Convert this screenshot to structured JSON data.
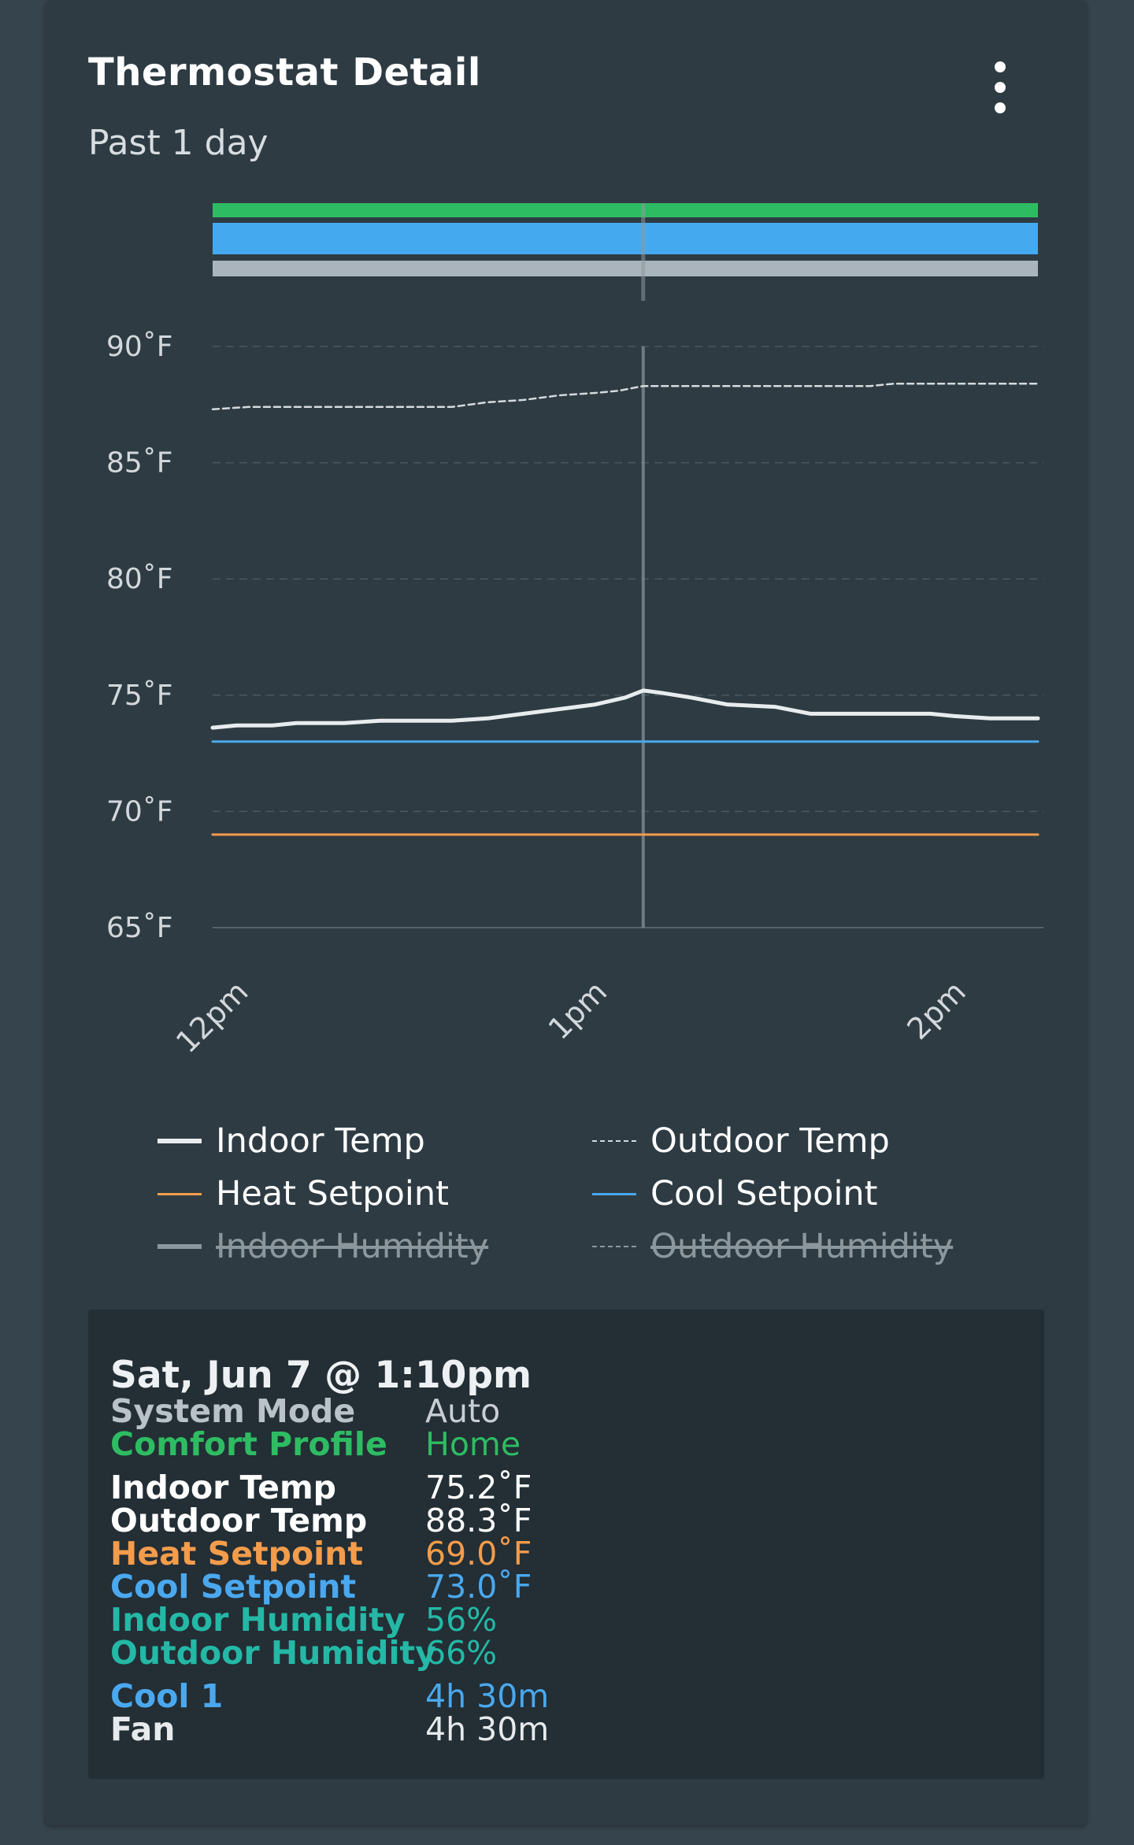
{
  "header": {
    "title": "Thermostat Detail",
    "subtitle": "Past 1 day"
  },
  "colors": {
    "indoor_temp": "#e8ecee",
    "outdoor_temp": "#d4dadd",
    "heat_setpoint": "#f39c4b",
    "cool_setpoint": "#4aa8ee",
    "comfort_home": "#2ebc62",
    "cool_stage": "#45a9f0",
    "fan": "#aab4bc",
    "humidity": "#24b8a6",
    "grid": "#4a5861",
    "axis_text": "#d2d8dc"
  },
  "chart_data": {
    "type": "line",
    "title": "",
    "xlabel": "",
    "ylabel": "",
    "x_ticks": [
      {
        "label": "12pm",
        "t": 0
      },
      {
        "label": "1pm",
        "t": 60
      },
      {
        "label": "2pm",
        "t": 120
      }
    ],
    "x_range_minutes": [
      -2,
      136
    ],
    "y_ticks": [
      "90˚F",
      "85˚F",
      "80˚F",
      "75˚F",
      "70˚F",
      "65˚F"
    ],
    "ylim": [
      65,
      92
    ],
    "grid": true,
    "cursor_minute": 70,
    "series": [
      {
        "name": "Indoor Temp",
        "key": "indoor",
        "style": "solid-thick",
        "points": [
          [
            -2,
            73.6
          ],
          [
            2,
            73.7
          ],
          [
            8,
            73.7
          ],
          [
            12,
            73.8
          ],
          [
            20,
            73.8
          ],
          [
            26,
            73.9
          ],
          [
            38,
            73.9
          ],
          [
            44,
            74.0
          ],
          [
            50,
            74.2
          ],
          [
            56,
            74.4
          ],
          [
            62,
            74.6
          ],
          [
            67,
            74.9
          ],
          [
            70,
            75.2
          ],
          [
            73,
            75.1
          ],
          [
            78,
            74.9
          ],
          [
            84,
            74.6
          ],
          [
            92,
            74.5
          ],
          [
            98,
            74.2
          ],
          [
            108,
            74.2
          ],
          [
            118,
            74.2
          ],
          [
            122,
            74.1
          ],
          [
            128,
            74.0
          ],
          [
            136,
            74.0
          ]
        ]
      },
      {
        "name": "Outdoor Temp",
        "key": "outdoor",
        "style": "dashed",
        "points": [
          [
            -2,
            87.3
          ],
          [
            4,
            87.4
          ],
          [
            20,
            87.4
          ],
          [
            38,
            87.4
          ],
          [
            44,
            87.6
          ],
          [
            50,
            87.7
          ],
          [
            56,
            87.9
          ],
          [
            62,
            88.0
          ],
          [
            66,
            88.1
          ],
          [
            70,
            88.3
          ],
          [
            80,
            88.3
          ],
          [
            96,
            88.3
          ],
          [
            108,
            88.3
          ],
          [
            112,
            88.4
          ],
          [
            126,
            88.4
          ],
          [
            136,
            88.4
          ]
        ]
      },
      {
        "name": "Heat Setpoint",
        "key": "heat",
        "style": "solid",
        "points": [
          [
            -2,
            69.0
          ],
          [
            136,
            69.0
          ]
        ]
      },
      {
        "name": "Cool Setpoint",
        "key": "cool",
        "style": "solid",
        "points": [
          [
            -2,
            73.0
          ],
          [
            136,
            73.0
          ]
        ]
      }
    ],
    "status_bars": [
      {
        "key": "comfort",
        "color": "#2ebc62"
      },
      {
        "key": "cool_stage",
        "color": "#45a9f0"
      },
      {
        "key": "fan",
        "color": "#aab4bc"
      }
    ]
  },
  "legend": [
    {
      "label": "Indoor Temp",
      "style": "thick",
      "color": "#e8ecee",
      "disabled": false
    },
    {
      "label": "Outdoor Temp",
      "style": "dashed",
      "color": "#d4dadd",
      "disabled": false
    },
    {
      "label": "Heat Setpoint",
      "style": "thin",
      "color": "#f39c4b",
      "disabled": false
    },
    {
      "label": "Cool Setpoint",
      "style": "thin",
      "color": "#4aa8ee",
      "disabled": false
    },
    {
      "label": "Indoor Humidity",
      "style": "thick",
      "color": "#8c979d",
      "disabled": true
    },
    {
      "label": "Outdoor Humidity",
      "style": "dashed",
      "color": "#8c979d",
      "disabled": true
    }
  ],
  "tooltip": {
    "date": "Sat, Jun 7 @ 1:10pm",
    "rows": [
      {
        "key": "System Mode",
        "value": "Auto",
        "key_color": "#b8c2c8",
        "value_color": "#c7cfd4"
      },
      {
        "key": "Comfort Profile",
        "value": "Home",
        "key_color": "#2ebc62",
        "value_color": "#2ebc62"
      },
      {
        "key": "Indoor Temp",
        "value": "75.2˚F",
        "key_color": "#ffffff",
        "value_color": "#ffffff"
      },
      {
        "key": "Outdoor Temp",
        "value": "88.3˚F",
        "key_color": "#ffffff",
        "value_color": "#ffffff"
      },
      {
        "key": "Heat Setpoint",
        "value": "69.0˚F",
        "key_color": "#f39c4b",
        "value_color": "#f39c4b"
      },
      {
        "key": "Cool Setpoint",
        "value": "73.0˚F",
        "key_color": "#4aa8ee",
        "value_color": "#4aa8ee"
      },
      {
        "key": "Indoor Humidity",
        "value": "56%",
        "key_color": "#24b8a6",
        "value_color": "#24b8a6"
      },
      {
        "key": "Outdoor Humidity",
        "value": "66%",
        "key_color": "#24b8a6",
        "value_color": "#24b8a6"
      },
      {
        "key": "Cool 1",
        "value": "4h 30m",
        "key_color": "#4aa8ee",
        "value_color": "#4aa8ee"
      },
      {
        "key": "Fan",
        "value": "4h 30m",
        "key_color": "#e6eaec",
        "value_color": "#e6eaec"
      }
    ]
  }
}
